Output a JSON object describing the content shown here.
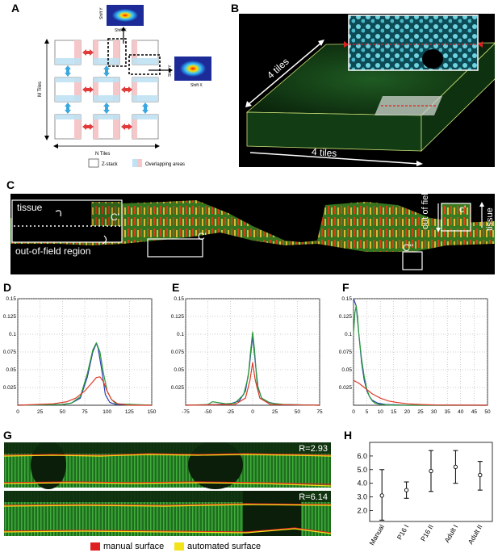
{
  "panels": {
    "A": "A",
    "B": "B",
    "C": "C",
    "D": "D",
    "E": "E",
    "F": "F",
    "G": "G",
    "H": "H"
  },
  "panel_a": {
    "shift_y": "Shift Y",
    "shift_x": "Shift X",
    "m_tiles": "M Tiles",
    "n_tiles": "N Tiles",
    "legend_zstack": "Z-stack",
    "legend_overlap": "Overlapping areas",
    "colors": {
      "red": "#e23a3a",
      "blue": "#3aa7e0",
      "pink": "#f6c7c9",
      "lightblue": "#bfe3f4"
    }
  },
  "panel_b": {
    "top_dim": "4 tiles",
    "bottom_dim": "4 tiles"
  },
  "panel_c": {
    "tissue": "tissue",
    "out_of_field_region": "out-of-field region",
    "c_label": "C'",
    "c2_label": "C'",
    "c3_label": "C''",
    "c4_label": "c'",
    "out_of_field_vert": "out of field",
    "tissue_vert": "tissue"
  },
  "panel_g": {
    "r_top": "R=2.93",
    "r_bottom": "R=6.14",
    "legend_manual": "manual surface",
    "legend_auto": "automated surface",
    "colors": {
      "manual": "#e02020",
      "auto": "#f2e419"
    }
  },
  "chart_data": [
    {
      "panel": "D",
      "type": "line",
      "xlim": [
        0,
        150
      ],
      "ylim": [
        0,
        0.15
      ],
      "xticks": [
        0,
        25,
        50,
        75,
        100,
        125,
        150
      ],
      "yticks": [
        0.025,
        0.05,
        0.075,
        0.1,
        0.125,
        0.15
      ],
      "xtick_labels": [
        "0",
        "25",
        "50",
        "75",
        "100",
        "125",
        "150"
      ],
      "ytick_labels": [
        "0.025",
        "0.05",
        "0.075",
        "0.1",
        "0.125",
        "0.15"
      ],
      "grid": true,
      "series": [
        {
          "color": "#2a3fb0",
          "x": [
            0,
            50,
            60,
            70,
            78,
            84,
            88,
            90,
            94,
            98,
            103,
            110,
            150
          ],
          "y": [
            0,
            0.001,
            0.003,
            0.01,
            0.04,
            0.075,
            0.087,
            0.08,
            0.05,
            0.015,
            0.004,
            0.001,
            0
          ]
        },
        {
          "color": "#2a9a3a",
          "x": [
            0,
            50,
            60,
            70,
            78,
            84,
            88,
            92,
            96,
            100,
            105,
            110,
            150
          ],
          "y": [
            0,
            0.001,
            0.003,
            0.012,
            0.045,
            0.078,
            0.088,
            0.075,
            0.045,
            0.02,
            0.008,
            0.002,
            0
          ]
        },
        {
          "color": "#e03a2a",
          "x": [
            0,
            20,
            40,
            55,
            65,
            75,
            82,
            88,
            92,
            96,
            100,
            105,
            112,
            125,
            150
          ],
          "y": [
            0,
            0.001,
            0.002,
            0.005,
            0.01,
            0.02,
            0.03,
            0.039,
            0.04,
            0.033,
            0.02,
            0.008,
            0.002,
            0,
            0
          ]
        }
      ]
    },
    {
      "panel": "E",
      "type": "line",
      "xlim": [
        -75,
        75
      ],
      "ylim": [
        0,
        0.15
      ],
      "xticks": [
        -75,
        -50,
        -25,
        0,
        25,
        50,
        75
      ],
      "yticks": [
        0.025,
        0.05,
        0.075,
        0.1,
        0.125,
        0.15
      ],
      "xtick_labels": [
        "-75",
        "-50",
        "-25",
        "0",
        "25",
        "50",
        "75"
      ],
      "ytick_labels": [
        "0.025",
        "0.05",
        "0.075",
        "0.1",
        "0.125",
        "0.15"
      ],
      "grid": true,
      "series": [
        {
          "color": "#2a3fb0",
          "x": [
            -75,
            -40,
            -25,
            -15,
            -8,
            -4,
            0,
            3,
            6,
            10,
            18,
            30,
            75
          ],
          "y": [
            0,
            0.001,
            0.002,
            0.006,
            0.02,
            0.05,
            0.098,
            0.06,
            0.025,
            0.01,
            0.004,
            0.001,
            0
          ]
        },
        {
          "color": "#2a9a3a",
          "x": [
            -75,
            -50,
            -45,
            -40,
            -30,
            -20,
            -10,
            -5,
            -2,
            0,
            2,
            5,
            10,
            20,
            35,
            75
          ],
          "y": [
            0,
            0.001,
            0.005,
            0.004,
            0.002,
            0.003,
            0.015,
            0.04,
            0.08,
            0.103,
            0.08,
            0.03,
            0.01,
            0.003,
            0.001,
            0
          ]
        },
        {
          "color": "#e03a2a",
          "x": [
            -75,
            -20,
            -8,
            -3,
            0,
            3,
            8,
            20,
            75
          ],
          "y": [
            0,
            0.001,
            0.01,
            0.035,
            0.06,
            0.035,
            0.01,
            0.001,
            0
          ]
        }
      ]
    },
    {
      "panel": "F",
      "type": "line",
      "xlim": [
        0,
        50
      ],
      "ylim": [
        0,
        0.15
      ],
      "xticks": [
        0,
        5,
        10,
        15,
        20,
        25,
        30,
        35,
        40,
        45,
        50
      ],
      "yticks": [
        0.025,
        0.05,
        0.075,
        0.1,
        0.125,
        0.15
      ],
      "xtick_labels": [
        "0",
        "5",
        "10",
        "15",
        "20",
        "25",
        "30",
        "35",
        "40",
        "45",
        "50"
      ],
      "ytick_labels": [
        "0.025",
        "0.05",
        "0.075",
        "0.1",
        "0.125",
        "0.15"
      ],
      "grid": true,
      "series": [
        {
          "color": "#2a3fb0",
          "x": [
            0,
            1,
            2,
            3,
            4,
            5,
            6,
            7,
            9,
            12,
            20,
            50
          ],
          "y": [
            0.15,
            0.14,
            0.1,
            0.06,
            0.035,
            0.02,
            0.012,
            0.007,
            0.003,
            0.001,
            0,
            0
          ]
        },
        {
          "color": "#2a9a3a",
          "x": [
            0,
            0.5,
            1,
            1.5,
            2,
            3,
            4,
            5,
            6,
            7,
            8,
            10,
            15,
            50
          ],
          "y": [
            0.1,
            0.13,
            0.14,
            0.125,
            0.1,
            0.065,
            0.04,
            0.022,
            0.012,
            0.006,
            0.003,
            0.001,
            0,
            0
          ]
        },
        {
          "color": "#e03a2a",
          "x": [
            0,
            1,
            2,
            3,
            5,
            7,
            10,
            13,
            16,
            20,
            25,
            30,
            50
          ],
          "y": [
            0.035,
            0.033,
            0.031,
            0.028,
            0.022,
            0.016,
            0.01,
            0.006,
            0.004,
            0.002,
            0.001,
            0.0005,
            0
          ]
        }
      ]
    },
    {
      "panel": "H",
      "type": "errorbar",
      "categories": [
        "Manual",
        "P16 I",
        "P16 II",
        "Adult I",
        "Adult II"
      ],
      "means": [
        3.1,
        3.5,
        4.9,
        5.2,
        4.6
      ],
      "lower": [
        1.3,
        2.9,
        3.4,
        4.0,
        3.5
      ],
      "upper": [
        5.0,
        4.1,
        6.4,
        6.4,
        5.6
      ],
      "ylim": [
        1.2,
        7.0
      ],
      "yticks": [
        2.0,
        3.0,
        4.0,
        5.0,
        6.0
      ],
      "ytick_labels": [
        "2.0",
        "3.0",
        "4.0",
        "5.0",
        "6.0"
      ]
    }
  ]
}
